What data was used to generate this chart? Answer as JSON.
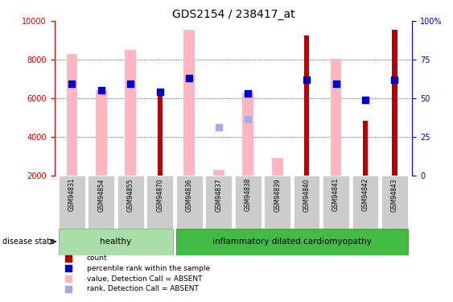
{
  "title": "GDS2154 / 238417_at",
  "samples": [
    "GSM94831",
    "GSM94854",
    "GSM94855",
    "GSM94870",
    "GSM94836",
    "GSM94837",
    "GSM94838",
    "GSM94839",
    "GSM94840",
    "GSM94841",
    "GSM94842",
    "GSM94843"
  ],
  "value_pink": [
    8300,
    6400,
    8500,
    null,
    9550,
    2300,
    6300,
    2900,
    null,
    8050,
    null,
    null
  ],
  "count_red": [
    null,
    null,
    null,
    6300,
    null,
    null,
    null,
    null,
    9250,
    null,
    4850,
    9550
  ],
  "rank_blue_dark": [
    6750,
    6400,
    6750,
    6350,
    7050,
    null,
    6250,
    null,
    6950,
    6750,
    5900,
    6950
  ],
  "rank_blue_light": [
    null,
    null,
    null,
    null,
    null,
    4500,
    4900,
    null,
    null,
    null,
    null,
    null
  ],
  "ylim": [
    2000,
    10000
  ],
  "yticks_left": [
    2000,
    4000,
    6000,
    8000,
    10000
  ],
  "yticks_right": [
    0,
    25,
    50,
    75,
    100
  ],
  "ylabel_left_color": "#cc0000",
  "ylabel_right_color": "#0000cc",
  "background_color": "#ffffff",
  "grid_color": "#000000",
  "pink_color": "#FFB6C1",
  "red_color": "#bb0000",
  "blue_dark_color": "#0000cc",
  "blue_light_color": "#aaaadd",
  "healthy_color": "#aaddaa",
  "inflam_color": "#44bb44",
  "label_bg_color": "#cccccc"
}
